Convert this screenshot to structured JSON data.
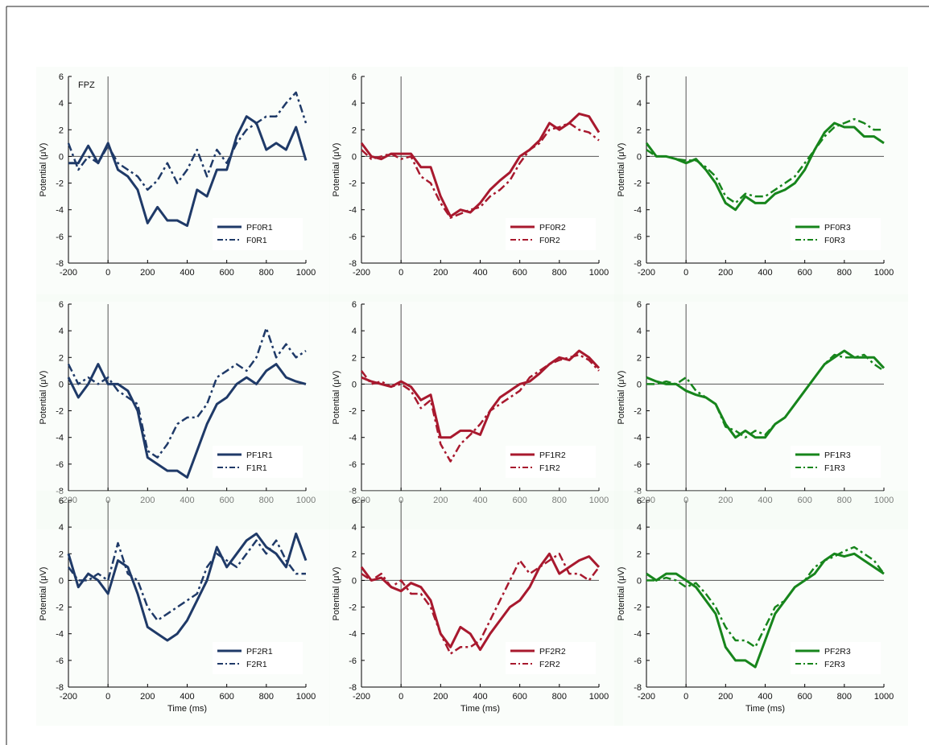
{
  "panel_tag": "FPZ",
  "colors": {
    "blue": "#1f3a68",
    "red": "#a8192e",
    "green": "#17851c",
    "axis": "#000000",
    "zero": "#555555",
    "panel_bg": "#f3faf3"
  },
  "chart_data": [
    {
      "type": "line",
      "row": 1,
      "col": 1,
      "color_key": "blue",
      "tag": "FPZ",
      "xlabel": "",
      "ylabel": "Potential (μV)",
      "xlim": [
        -200,
        1000
      ],
      "ylim": [
        -8,
        6
      ],
      "xticks": [
        "-200",
        "0",
        "200",
        "400",
        "600",
        "800",
        "1000"
      ],
      "yticks": [
        "-8",
        "-6",
        "-4",
        "-2",
        "0",
        "2",
        "4",
        "6"
      ],
      "x": [
        -200,
        -150,
        -100,
        -50,
        0,
        50,
        100,
        150,
        200,
        250,
        300,
        350,
        400,
        450,
        500,
        550,
        600,
        650,
        700,
        750,
        800,
        850,
        900,
        950,
        1000
      ],
      "series": [
        {
          "name": "PF0R1",
          "style": "solid",
          "values": [
            -0.5,
            -0.5,
            0.8,
            -0.5,
            1.0,
            -1.0,
            -1.5,
            -2.5,
            -5.0,
            -3.8,
            -4.8,
            -4.8,
            -5.2,
            -2.5,
            -3.0,
            -1.0,
            -1.0,
            1.5,
            3.0,
            2.5,
            0.5,
            1.0,
            0.5,
            2.2,
            -0.3
          ]
        },
        {
          "name": "F0R1",
          "style": "dashed",
          "values": [
            1.0,
            -1.0,
            0.0,
            -0.5,
            0.8,
            -0.5,
            -1.0,
            -1.5,
            -2.5,
            -1.8,
            -0.5,
            -2.0,
            -1.0,
            0.5,
            -1.5,
            0.5,
            -0.5,
            1.0,
            2.0,
            2.5,
            3.0,
            3.0,
            4.0,
            4.8,
            2.5
          ]
        }
      ]
    },
    {
      "type": "line",
      "row": 1,
      "col": 2,
      "color_key": "red",
      "xlabel": "",
      "ylabel": "Potential (μV)",
      "xlim": [
        -200,
        1000
      ],
      "ylim": [
        -8,
        6
      ],
      "xticks": [
        "-200",
        "0",
        "200",
        "400",
        "600",
        "800",
        "1000"
      ],
      "yticks": [
        "-8",
        "-6",
        "-4",
        "-2",
        "0",
        "2",
        "4",
        "6"
      ],
      "x": [
        -200,
        -150,
        -100,
        -50,
        0,
        50,
        100,
        150,
        200,
        250,
        300,
        350,
        400,
        450,
        500,
        550,
        600,
        650,
        700,
        750,
        800,
        850,
        900,
        950,
        1000
      ],
      "series": [
        {
          "name": "PF0R2",
          "style": "solid",
          "values": [
            1.0,
            0.0,
            -0.2,
            0.2,
            0.2,
            0.2,
            -0.8,
            -0.8,
            -3.0,
            -4.5,
            -4.0,
            -4.2,
            -3.5,
            -2.5,
            -1.8,
            -1.2,
            0.0,
            0.5,
            1.2,
            2.5,
            2.0,
            2.5,
            3.2,
            3.0,
            1.8
          ]
        },
        {
          "name": "F0R2",
          "style": "dashed",
          "values": [
            0.5,
            -0.2,
            0.0,
            0.2,
            -0.2,
            0.0,
            -1.5,
            -2.0,
            -3.5,
            -4.6,
            -4.3,
            -4.0,
            -3.8,
            -3.0,
            -2.5,
            -1.8,
            -0.5,
            0.5,
            1.0,
            2.0,
            2.2,
            2.5,
            2.0,
            1.8,
            1.2
          ]
        }
      ]
    },
    {
      "type": "line",
      "row": 1,
      "col": 3,
      "color_key": "green",
      "xlabel": "",
      "ylabel": "Potential (μV)",
      "xlim": [
        -200,
        1000
      ],
      "ylim": [
        -8,
        6
      ],
      "xticks": [
        "-200",
        "0",
        "200",
        "400",
        "600",
        "800",
        "1000"
      ],
      "yticks": [
        "-8",
        "-6",
        "-4",
        "-2",
        "0",
        "2",
        "4",
        "6"
      ],
      "x": [
        -200,
        -150,
        -100,
        -50,
        0,
        50,
        100,
        150,
        200,
        250,
        300,
        350,
        400,
        450,
        500,
        550,
        600,
        650,
        700,
        750,
        800,
        850,
        900,
        950,
        1000
      ],
      "series": [
        {
          "name": "PF0R3",
          "style": "solid",
          "values": [
            1.0,
            0.0,
            0.0,
            -0.2,
            -0.5,
            -0.2,
            -1.0,
            -2.0,
            -3.5,
            -4.0,
            -3.0,
            -3.5,
            -3.5,
            -2.8,
            -2.5,
            -2.0,
            -1.0,
            0.5,
            1.8,
            2.5,
            2.2,
            2.2,
            1.5,
            1.5,
            1.0
          ]
        },
        {
          "name": "F0R3",
          "style": "dashed",
          "values": [
            0.5,
            0.0,
            0.0,
            -0.2,
            -0.3,
            -0.3,
            -0.8,
            -1.5,
            -3.0,
            -3.5,
            -2.8,
            -3.0,
            -3.0,
            -2.5,
            -2.0,
            -1.5,
            -0.5,
            0.5,
            1.5,
            2.2,
            2.5,
            2.8,
            2.5,
            2.0,
            2.0
          ]
        }
      ]
    },
    {
      "type": "line",
      "row": 2,
      "col": 1,
      "color_key": "blue",
      "xlabel": "",
      "ylabel": "Potential (μV)",
      "xlim": [
        -200,
        1000
      ],
      "ylim": [
        -8,
        6
      ],
      "xticks": [
        "-200",
        "0",
        "200",
        "400",
        "600",
        "800",
        "1000"
      ],
      "yticks": [
        "-8",
        "-6",
        "-4",
        "-2",
        "0",
        "2",
        "4",
        "6"
      ],
      "x": [
        -200,
        -150,
        -100,
        -50,
        0,
        50,
        100,
        150,
        200,
        250,
        300,
        350,
        400,
        450,
        500,
        550,
        600,
        650,
        700,
        750,
        800,
        850,
        900,
        950,
        1000
      ],
      "series": [
        {
          "name": "PF1R1",
          "style": "solid",
          "values": [
            0.5,
            -1.0,
            0.0,
            1.5,
            0.0,
            0.0,
            -0.5,
            -2.0,
            -5.5,
            -6.0,
            -6.5,
            -6.5,
            -7.0,
            -5.0,
            -3.0,
            -1.5,
            -1.0,
            0.0,
            0.5,
            0.0,
            1.0,
            1.5,
            0.5,
            0.2,
            0.0
          ]
        },
        {
          "name": "F1R1",
          "style": "dashed",
          "values": [
            1.5,
            0.0,
            0.5,
            0.0,
            0.5,
            -0.5,
            -1.0,
            -1.5,
            -5.0,
            -5.5,
            -4.5,
            -3.0,
            -2.5,
            -2.5,
            -1.5,
            0.5,
            1.0,
            1.5,
            1.0,
            2.0,
            4.2,
            2.0,
            3.0,
            2.0,
            2.5
          ]
        }
      ]
    },
    {
      "type": "line",
      "row": 2,
      "col": 2,
      "color_key": "red",
      "xlabel": "",
      "ylabel": "Potential (μV)",
      "xlim": [
        -200,
        1000
      ],
      "ylim": [
        -8,
        6
      ],
      "xticks": [
        "-200",
        "0",
        "200",
        "400",
        "600",
        "800",
        "1000"
      ],
      "yticks": [
        "-8",
        "-6",
        "-4",
        "-2",
        "0",
        "2",
        "4",
        "6"
      ],
      "x": [
        -200,
        -150,
        -100,
        -50,
        0,
        50,
        100,
        150,
        200,
        250,
        300,
        350,
        400,
        450,
        500,
        550,
        600,
        650,
        700,
        750,
        800,
        850,
        900,
        950,
        1000
      ],
      "series": [
        {
          "name": "PF1R2",
          "style": "solid",
          "values": [
            0.5,
            0.2,
            0.0,
            -0.2,
            0.2,
            -0.2,
            -1.2,
            -0.8,
            -4.0,
            -4.0,
            -3.5,
            -3.5,
            -3.8,
            -2.0,
            -1.0,
            -0.5,
            0.0,
            0.2,
            0.8,
            1.5,
            2.0,
            1.8,
            2.5,
            2.0,
            1.2
          ]
        },
        {
          "name": "F1R2",
          "style": "dashed",
          "values": [
            1.0,
            0.0,
            0.2,
            -0.2,
            0.0,
            -0.5,
            -1.8,
            -1.2,
            -4.5,
            -5.8,
            -4.5,
            -3.8,
            -3.0,
            -2.0,
            -1.5,
            -1.0,
            -0.5,
            0.5,
            1.0,
            1.5,
            1.8,
            2.0,
            2.2,
            1.8,
            1.0
          ]
        }
      ]
    },
    {
      "type": "line",
      "row": 2,
      "col": 3,
      "color_key": "green",
      "xlabel": "",
      "ylabel": "Potential (μV)",
      "xlim": [
        -200,
        1000
      ],
      "ylim": [
        -8,
        6
      ],
      "xticks": [
        "-200",
        "0",
        "200",
        "400",
        "600",
        "800",
        "1000"
      ],
      "yticks": [
        "-8",
        "-6",
        "-4",
        "-2",
        "0",
        "2",
        "4",
        "6"
      ],
      "x": [
        -200,
        -150,
        -100,
        -50,
        0,
        50,
        100,
        150,
        200,
        250,
        300,
        350,
        400,
        450,
        500,
        550,
        600,
        650,
        700,
        750,
        800,
        850,
        900,
        950,
        1000
      ],
      "series": [
        {
          "name": "PF1R3",
          "style": "solid",
          "values": [
            0.5,
            0.2,
            0.0,
            0.0,
            -0.5,
            -0.8,
            -1.0,
            -1.5,
            -3.0,
            -4.0,
            -3.5,
            -4.0,
            -4.0,
            -3.0,
            -2.5,
            -1.5,
            -0.5,
            0.5,
            1.5,
            2.0,
            2.5,
            2.0,
            2.0,
            2.0,
            1.2
          ]
        },
        {
          "name": "F1R3",
          "style": "dashed",
          "values": [
            0.0,
            0.0,
            0.2,
            0.0,
            0.5,
            -0.5,
            -1.0,
            -1.5,
            -3.2,
            -3.5,
            -4.0,
            -3.5,
            -3.8,
            -3.0,
            -2.5,
            -1.5,
            -0.5,
            0.5,
            1.5,
            2.2,
            2.0,
            2.0,
            2.2,
            1.5,
            1.0
          ]
        }
      ]
    },
    {
      "type": "line",
      "row": 3,
      "col": 1,
      "color_key": "blue",
      "xlabel": "Time (ms)",
      "ylabel": "Potential (μV)",
      "xlim": [
        -200,
        1000
      ],
      "ylim": [
        -8,
        6
      ],
      "xticks": [
        "-200",
        "0",
        "200",
        "400",
        "600",
        "800",
        "1000"
      ],
      "yticks": [
        "-8",
        "-6",
        "-4",
        "-2",
        "0",
        "2",
        "4",
        "6"
      ],
      "x": [
        -200,
        -150,
        -100,
        -50,
        0,
        50,
        100,
        150,
        200,
        250,
        300,
        350,
        400,
        450,
        500,
        550,
        600,
        650,
        700,
        750,
        800,
        850,
        900,
        950,
        1000
      ],
      "series": [
        {
          "name": "PF2R1",
          "style": "solid",
          "values": [
            2.0,
            -0.5,
            0.5,
            0.0,
            -1.0,
            1.5,
            1.0,
            -1.0,
            -3.5,
            -4.0,
            -4.5,
            -4.0,
            -3.0,
            -1.5,
            0.0,
            2.5,
            1.0,
            2.0,
            3.0,
            3.5,
            2.5,
            2.0,
            1.0,
            3.5,
            1.5
          ]
        },
        {
          "name": "F2R1",
          "style": "dashed",
          "values": [
            1.0,
            0.0,
            0.0,
            0.5,
            0.0,
            2.8,
            0.5,
            0.0,
            -2.0,
            -3.0,
            -2.5,
            -2.0,
            -1.5,
            -1.0,
            1.0,
            2.0,
            1.5,
            1.0,
            2.0,
            3.0,
            2.0,
            3.0,
            1.5,
            0.5,
            0.5
          ]
        }
      ]
    },
    {
      "type": "line",
      "row": 3,
      "col": 2,
      "color_key": "red",
      "xlabel": "Time (ms)",
      "ylabel": "Potential (μV)",
      "xlim": [
        -200,
        1000
      ],
      "ylim": [
        -8,
        6
      ],
      "xticks": [
        "-200",
        "0",
        "200",
        "400",
        "600",
        "800",
        "1000"
      ],
      "yticks": [
        "-8",
        "-6",
        "-4",
        "-2",
        "0",
        "2",
        "4",
        "6"
      ],
      "x": [
        -200,
        -150,
        -100,
        -50,
        0,
        50,
        100,
        150,
        200,
        250,
        300,
        350,
        400,
        450,
        500,
        550,
        600,
        650,
        700,
        750,
        800,
        850,
        900,
        950,
        1000
      ],
      "series": [
        {
          "name": "PF2R2",
          "style": "solid",
          "values": [
            1.0,
            0.0,
            0.2,
            -0.5,
            -0.8,
            -0.2,
            -0.5,
            -1.5,
            -4.0,
            -5.0,
            -3.5,
            -4.0,
            -5.2,
            -4.0,
            -3.0,
            -2.0,
            -1.5,
            -0.5,
            1.0,
            2.0,
            0.5,
            1.0,
            1.5,
            1.8,
            1.0
          ]
        },
        {
          "name": "F2R2",
          "style": "dashed",
          "values": [
            0.5,
            0.0,
            0.5,
            -0.5,
            0.0,
            -1.0,
            -1.0,
            -2.0,
            -4.0,
            -5.5,
            -5.0,
            -5.0,
            -4.5,
            -3.0,
            -1.5,
            0.0,
            1.5,
            0.5,
            1.0,
            1.5,
            2.0,
            0.5,
            0.5,
            0.0,
            1.0
          ]
        }
      ]
    },
    {
      "type": "line",
      "row": 3,
      "col": 3,
      "color_key": "green",
      "xlabel": "Time (ms)",
      "ylabel": "Potential (μV)",
      "xlim": [
        -200,
        1000
      ],
      "ylim": [
        -8,
        6
      ],
      "xticks": [
        "-200",
        "0",
        "200",
        "400",
        "600",
        "800",
        "1000"
      ],
      "yticks": [
        "-8",
        "-6",
        "-4",
        "-2",
        "0",
        "2",
        "4",
        "6"
      ],
      "x": [
        -200,
        -150,
        -100,
        -50,
        0,
        50,
        100,
        150,
        200,
        250,
        300,
        350,
        400,
        450,
        500,
        550,
        600,
        650,
        700,
        750,
        800,
        850,
        900,
        950,
        1000
      ],
      "series": [
        {
          "name": "PF2R3",
          "style": "solid",
          "values": [
            0.5,
            0.0,
            0.5,
            0.5,
            0.0,
            -0.5,
            -1.5,
            -2.5,
            -5.0,
            -6.0,
            -6.0,
            -6.5,
            -4.5,
            -2.5,
            -1.5,
            -0.5,
            0.0,
            0.5,
            1.5,
            2.0,
            1.8,
            2.0,
            1.5,
            1.0,
            0.5
          ]
        },
        {
          "name": "F2R3",
          "style": "dashed",
          "values": [
            0.0,
            0.0,
            0.2,
            0.0,
            -0.5,
            -0.2,
            -1.0,
            -2.0,
            -3.5,
            -4.5,
            -4.5,
            -5.0,
            -3.5,
            -2.0,
            -1.5,
            -0.5,
            0.0,
            1.0,
            1.5,
            1.8,
            2.2,
            2.5,
            2.0,
            1.5,
            0.5
          ]
        }
      ]
    }
  ]
}
